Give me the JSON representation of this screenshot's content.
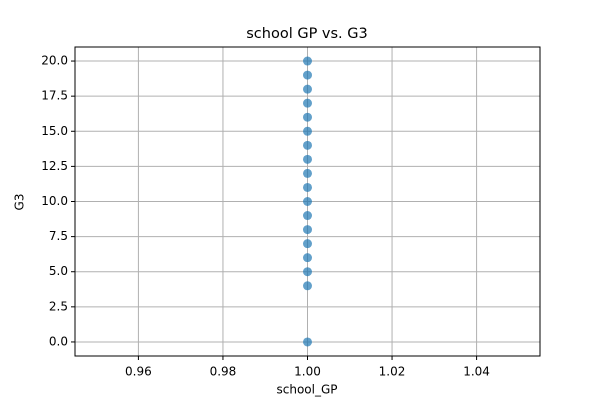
{
  "chart_data": {
    "type": "scatter",
    "title": "school GP vs. G3",
    "x_label": "school_GP",
    "y_label": "G3",
    "x": [
      1,
      1,
      1,
      1,
      1,
      1,
      1,
      1,
      1,
      1,
      1,
      1,
      1,
      1,
      1,
      1,
      1,
      1
    ],
    "values": [
      0,
      4,
      5,
      6,
      7,
      8,
      9,
      10,
      11,
      12,
      13,
      14,
      15,
      16,
      17,
      18,
      19,
      20
    ],
    "color": "#1f77b4",
    "xlim": [
      0.945,
      1.055
    ],
    "xticks": [
      0.96,
      0.98,
      {
        "value": 1,
        "label": "1.00"
      },
      1.02,
      1.04
    ],
    "ylim": [
      -1,
      21
    ],
    "yticks": [
      {
        "value": 0,
        "label": "0.0"
      },
      2.5,
      {
        "value": 5,
        "label": "5.0"
      },
      7.5,
      {
        "value": 10,
        "label": "10.0"
      },
      12.5,
      {
        "value": 15,
        "label": "15.0"
      },
      17.5,
      {
        "value": 20,
        "label": "20.0"
      }
    ],
    "grid": true
  }
}
